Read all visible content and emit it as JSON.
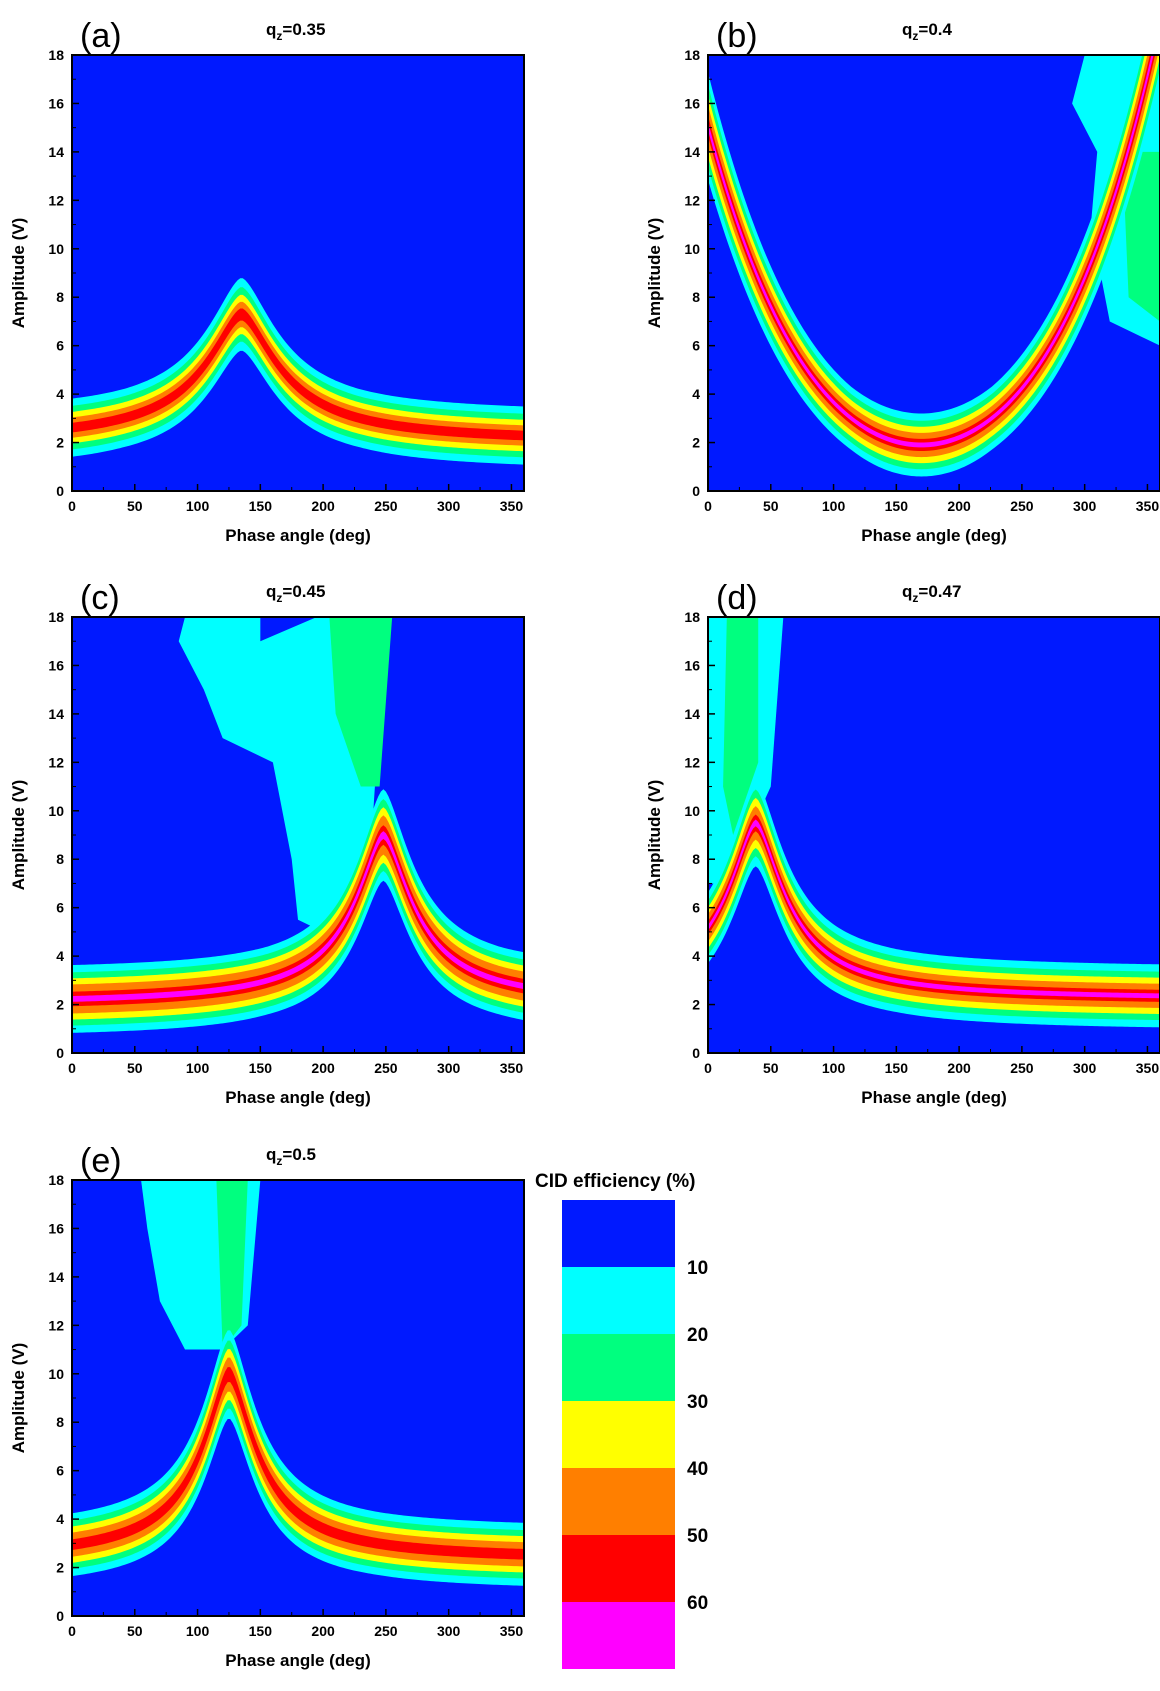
{
  "colors": {
    "level_0_10": "#0019ff",
    "level_10_20": "#00ffff",
    "level_20_30": "#00ff7f",
    "level_30_40": "#ffff00",
    "level_40_50": "#ff7f00",
    "level_50_60": "#ff0000",
    "level_60_plus": "#ff00ff"
  },
  "colorbar": {
    "title": "CID efficiency (%)",
    "labels": [
      "10",
      "20",
      "30",
      "40",
      "50",
      "60"
    ],
    "colors": [
      "#0019ff",
      "#00ffff",
      "#00ff7f",
      "#ffff00",
      "#ff7f00",
      "#ff0000",
      "#ff00ff"
    ]
  },
  "chart_data": [
    {
      "type": "heatmap",
      "panel": "(a)",
      "title_main": "q",
      "title_sub": "z",
      "title_value": "=0.35",
      "xlabel": "Phase angle (deg)",
      "ylabel": "Amplitude (V)",
      "xlim": [
        0,
        360
      ],
      "ylim": [
        0,
        18
      ],
      "xticks": [
        0,
        50,
        100,
        150,
        200,
        250,
        300,
        350
      ],
      "yticks": [
        0,
        2,
        4,
        6,
        8,
        10,
        12,
        14,
        16,
        18
      ],
      "band": {
        "peak_phase": 135,
        "peak_amplitude": 7.3,
        "baseline_amplitude": 2.0,
        "max_efficiency_range": "50-60"
      }
    },
    {
      "type": "heatmap",
      "panel": "(b)",
      "title_main": "q",
      "title_sub": "z",
      "title_value": "=0.4",
      "xlabel": "Phase angle (deg)",
      "ylabel": "Amplitude (V)",
      "xlim": [
        0,
        360
      ],
      "ylim": [
        0,
        18
      ],
      "xticks": [
        0,
        50,
        100,
        150,
        200,
        250,
        300,
        350
      ],
      "yticks": [
        0,
        2,
        4,
        6,
        8,
        10,
        12,
        14,
        16,
        18
      ],
      "band": {
        "min_phase": 170,
        "min_amplitude": 1.9,
        "max_efficiency_range": ">60"
      }
    },
    {
      "type": "heatmap",
      "panel": "(c)",
      "title_main": "q",
      "title_sub": "z",
      "title_value": "=0.45",
      "xlabel": "Phase angle (deg)",
      "ylabel": "Amplitude (V)",
      "xlim": [
        0,
        360
      ],
      "ylim": [
        0,
        18
      ],
      "xticks": [
        0,
        50,
        100,
        150,
        200,
        250,
        300,
        350
      ],
      "yticks": [
        0,
        2,
        4,
        6,
        8,
        10,
        12,
        14,
        16,
        18
      ],
      "band": {
        "peak_phase": 248,
        "peak_amplitude": 9.0,
        "baseline_amplitude": 2.0,
        "max_efficiency_range": ">60"
      }
    },
    {
      "type": "heatmap",
      "panel": "(d)",
      "title_main": "q",
      "title_sub": "z",
      "title_value": "=0.47",
      "xlabel": "Phase angle (deg)",
      "ylabel": "Amplitude (V)",
      "xlim": [
        0,
        360
      ],
      "ylim": [
        0,
        18
      ],
      "xticks": [
        0,
        50,
        100,
        150,
        200,
        250,
        300,
        350
      ],
      "yticks": [
        0,
        2,
        4,
        6,
        8,
        10,
        12,
        14,
        16,
        18
      ],
      "band": {
        "peak_phase": 38,
        "peak_amplitude": 9.5,
        "baseline_amplitude": 2.2,
        "max_efficiency_range": ">60"
      }
    },
    {
      "type": "heatmap",
      "panel": "(e)",
      "title_main": "q",
      "title_sub": "z",
      "title_value": "=0.5",
      "xlabel": "Phase angle (deg)",
      "ylabel": "Amplitude (V)",
      "xlim": [
        0,
        360
      ],
      "ylim": [
        0,
        18
      ],
      "xticks": [
        0,
        50,
        100,
        150,
        200,
        250,
        300,
        350
      ],
      "yticks": [
        0,
        2,
        4,
        6,
        8,
        10,
        12,
        14,
        16,
        18
      ],
      "band": {
        "peak_phase": 125,
        "peak_amplitude": 10.0,
        "baseline_amplitude": 2.3,
        "max_efficiency_range": "50-60"
      }
    }
  ]
}
